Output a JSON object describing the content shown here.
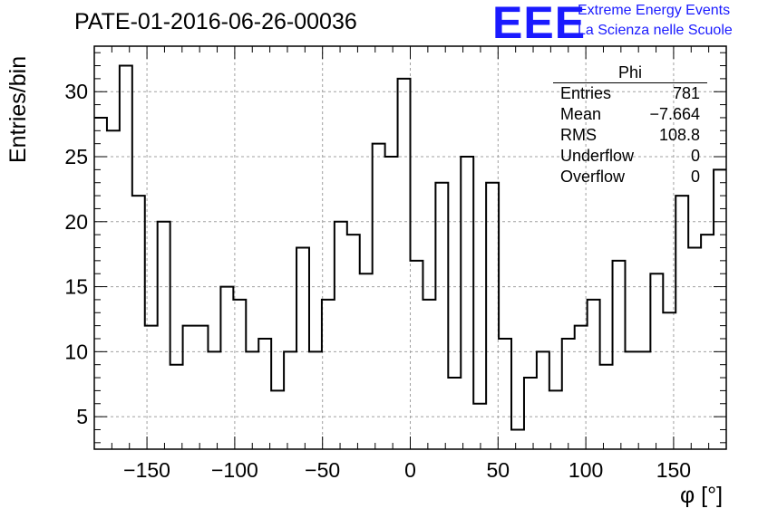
{
  "header": {
    "title": "PATE-01-2016-06-26-00036",
    "logo_text": "EEE",
    "logo_line1": "Extreme Energy Events",
    "logo_line2": "La Scienza nelle Scuole"
  },
  "stats_box": {
    "title": "Phi",
    "rows": [
      {
        "label": "Entries",
        "value": "781"
      },
      {
        "label": "Mean",
        "value": "−7.664"
      },
      {
        "label": "RMS",
        "value": "108.8"
      },
      {
        "label": "Underflow",
        "value": "0"
      },
      {
        "label": "Overflow",
        "value": "0"
      }
    ]
  },
  "colors": {
    "histogram": "#000000",
    "grid": "#a0a0a0",
    "logo": "#1a1aff"
  },
  "chart_data": {
    "type": "bar",
    "style": "step-histogram",
    "title": "PATE-01-2016-06-26-00036",
    "xlabel": "φ [°]",
    "ylabel": "Entries/bin",
    "xlim": [
      -180,
      180
    ],
    "ylim": [
      2.5,
      33.5
    ],
    "bin_width": 7.2,
    "x_ticks": [
      -150,
      -100,
      -50,
      0,
      50,
      100,
      150
    ],
    "x_tick_labels": [
      "−150",
      "−100",
      "−50",
      "0",
      "50",
      "100",
      "150"
    ],
    "y_ticks": [
      5,
      10,
      15,
      20,
      25,
      30
    ],
    "y_tick_labels": [
      "5",
      "10",
      "15",
      "20",
      "25",
      "30"
    ],
    "grid": true,
    "legend": "top-right",
    "values": [
      28,
      27,
      32,
      22,
      12,
      20,
      9,
      12,
      12,
      10,
      15,
      14,
      10,
      11,
      7,
      10,
      18,
      10,
      14,
      20,
      19,
      16,
      26,
      25,
      31,
      17,
      14,
      23,
      8,
      25,
      6,
      23,
      11,
      4,
      8,
      10,
      7,
      11,
      12,
      14,
      9,
      17,
      10,
      10,
      16,
      13,
      22,
      18,
      19,
      24
    ]
  }
}
